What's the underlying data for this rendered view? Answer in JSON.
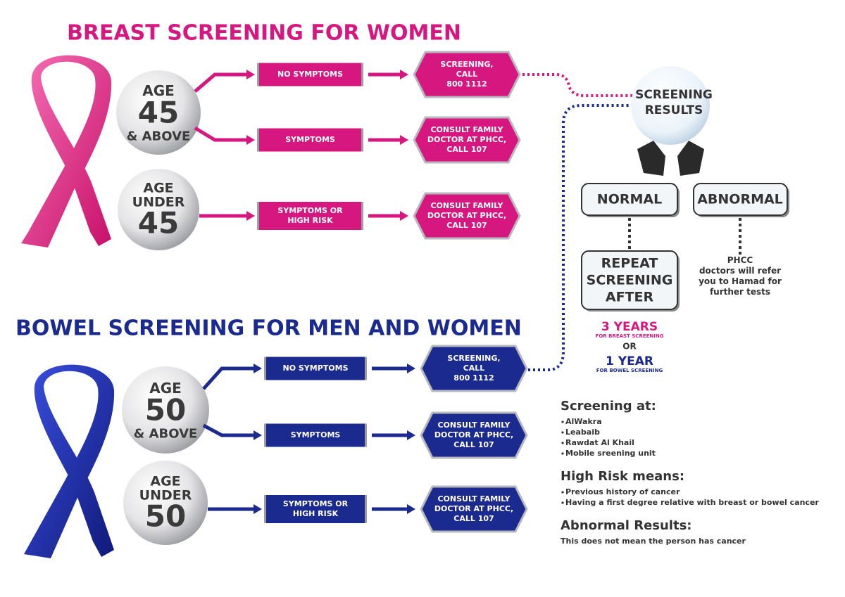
{
  "breast": {
    "title": "BREAST SCREENING FOR WOMEN",
    "groups": [
      {
        "age": [
          "AGE",
          "45",
          "& ABOVE"
        ]
      },
      {
        "age": [
          "AGE",
          "UNDER",
          "45"
        ]
      }
    ],
    "paths": [
      {
        "condition": [
          "NO SYMPTOMS"
        ],
        "action": [
          "SCREENING,",
          "CALL",
          "800 1112"
        ]
      },
      {
        "condition": [
          "SYMPTOMS"
        ],
        "action": [
          "CONSULT FAMILY",
          "DOCTOR AT PHCC,",
          "CALL 107"
        ]
      },
      {
        "condition": [
          "SYMPTOMS OR",
          "HIGH RISK"
        ],
        "action": [
          "CONSULT FAMILY",
          "DOCTOR AT PHCC,",
          "CALL 107"
        ]
      }
    ]
  },
  "bowel": {
    "title": "BOWEL SCREENING FOR MEN AND WOMEN",
    "groups": [
      {
        "age": [
          "AGE",
          "50",
          "& ABOVE"
        ]
      },
      {
        "age": [
          "AGE",
          "UNDER",
          "50"
        ]
      }
    ],
    "paths": [
      {
        "condition": [
          "NO SYMPTOMS"
        ],
        "action": [
          "SCREENING,",
          "CALL",
          "800 1112"
        ]
      },
      {
        "condition": [
          "SYMPTOMS"
        ],
        "action": [
          "CONSULT FAMILY",
          "DOCTOR AT PHCC,",
          "CALL 107"
        ]
      },
      {
        "condition": [
          "SYMPTOMS OR",
          "HIGH RISK"
        ],
        "action": [
          "CONSULT FAMILY",
          "DOCTOR AT PHCC,",
          "CALL 107"
        ]
      }
    ]
  },
  "results": {
    "title": [
      "SCREENING",
      "RESULTS"
    ],
    "normal": "NORMAL",
    "abnormal": "ABNORMAL",
    "repeat": [
      "REPEAT",
      "SCREENING",
      "AFTER"
    ],
    "breast_interval": "3 YEARS",
    "breast_note": "FOR BREAST SCREENING",
    "or": "OR",
    "bowel_interval": "1 YEAR",
    "bowel_note": "FOR BOWEL SCREENING",
    "abnormal_note": [
      "PHCC",
      "doctors will refer",
      "you to Hamad for",
      "further tests"
    ]
  },
  "info": [
    {
      "heading": "Screening at:",
      "items": [
        "AlWakra",
        "Leabaib",
        "Rawdat Al Khail",
        "Mobile sreening unit"
      ]
    },
    {
      "heading": "High Risk means:",
      "items": [
        "Previous history of cancer",
        "Having a first degree relative with breast or bowel cancer"
      ]
    },
    {
      "heading": "Abnormal Results:",
      "text": "This does not mean the person has cancer"
    }
  ]
}
